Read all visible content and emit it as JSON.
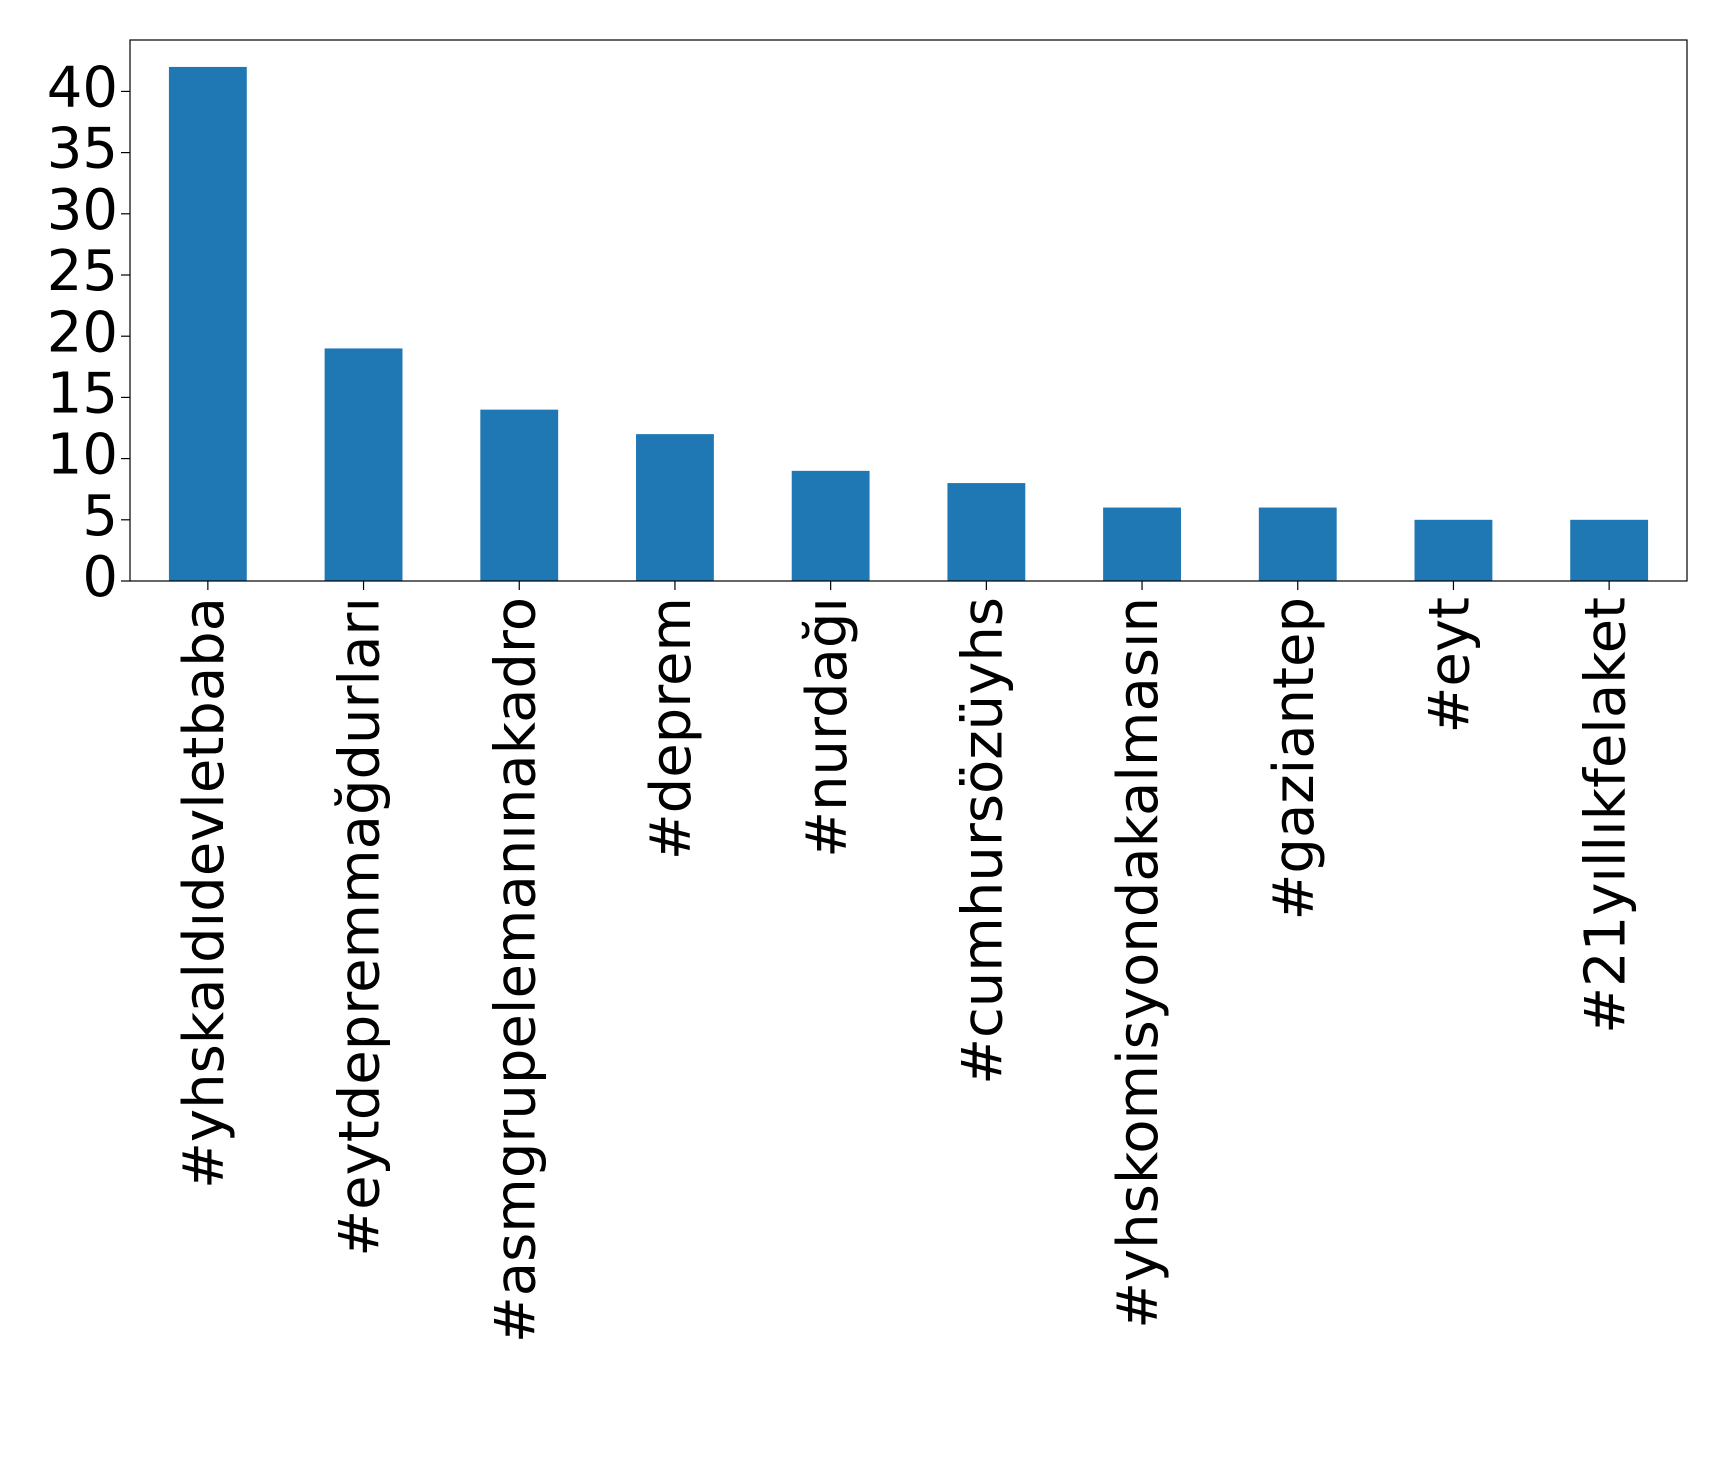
{
  "chart_data": {
    "type": "bar",
    "categories": [
      "#yhskaldıdevletbaba",
      "#eytdepremmağdurları",
      "#asmgrupelemanınakadro",
      "#deprem",
      "#nurdağı",
      "#cumhursözüyhs",
      "#yhskomisyondakalmasın",
      "#gaziantep",
      "#eyt",
      "#21yıllıkfelaket"
    ],
    "values": [
      42,
      19,
      14,
      12,
      9,
      8,
      6,
      6,
      5,
      5
    ],
    "color": "#1f77b4",
    "ylim": [
      0,
      44.2
    ],
    "yticks": [
      0,
      5,
      10,
      15,
      20,
      25,
      30,
      35,
      40
    ],
    "grid": false
  }
}
